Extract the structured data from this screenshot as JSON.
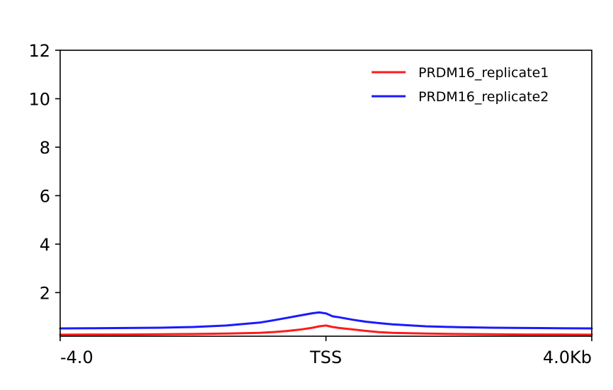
{
  "chart_data": {
    "type": "line",
    "title": "",
    "xlabel": "",
    "ylabel": "",
    "xlim": [
      -4.0,
      4.0
    ],
    "ylim": [
      0.2,
      12
    ],
    "x_ticks": [
      {
        "value": -4.0,
        "label": "-4.0"
      },
      {
        "value": 0,
        "label": "TSS"
      },
      {
        "value": 4.0,
        "label": "4.0Kb"
      }
    ],
    "y_ticks": [
      {
        "value": 2,
        "label": "2"
      },
      {
        "value": 4,
        "label": "4"
      },
      {
        "value": 6,
        "label": "6"
      },
      {
        "value": 8,
        "label": "8"
      },
      {
        "value": 10,
        "label": "10"
      },
      {
        "value": 12,
        "label": "12"
      }
    ],
    "grid": false,
    "legend_position": "top-right",
    "x": [
      -4.0,
      -3.5,
      -3.0,
      -2.5,
      -2.0,
      -1.5,
      -1.0,
      -0.8,
      -0.6,
      -0.4,
      -0.2,
      -0.1,
      0.0,
      0.1,
      0.2,
      0.4,
      0.6,
      0.8,
      1.0,
      1.5,
      2.0,
      2.5,
      3.0,
      3.5,
      4.0
    ],
    "series": [
      {
        "name": "PRDM16_replicate1",
        "color": "#ff1a1a",
        "values": [
          0.26,
          0.27,
          0.27,
          0.28,
          0.29,
          0.31,
          0.34,
          0.37,
          0.41,
          0.47,
          0.55,
          0.61,
          0.64,
          0.58,
          0.54,
          0.48,
          0.42,
          0.37,
          0.34,
          0.31,
          0.29,
          0.28,
          0.27,
          0.27,
          0.26
        ]
      },
      {
        "name": "PRDM16_replicate2",
        "color": "#1a1aff",
        "values": [
          0.52,
          0.53,
          0.54,
          0.55,
          0.58,
          0.64,
          0.76,
          0.85,
          0.95,
          1.05,
          1.15,
          1.18,
          1.14,
          1.02,
          0.98,
          0.88,
          0.8,
          0.74,
          0.69,
          0.61,
          0.57,
          0.55,
          0.54,
          0.53,
          0.52
        ]
      }
    ]
  }
}
